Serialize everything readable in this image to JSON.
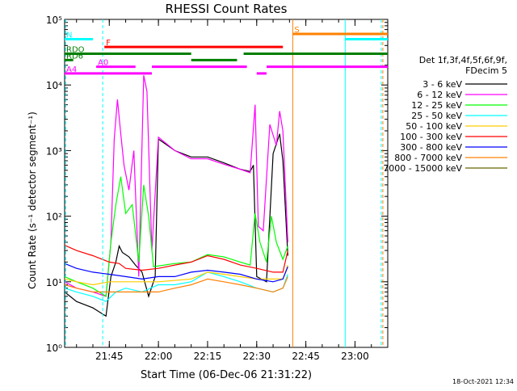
{
  "chart_data": {
    "type": "line",
    "title": "RHESSI Count Rates",
    "xlabel": "Start Time (06-Dec-06 21:31:22)",
    "ylabel": "Count Rate (s⁻¹ detector segment⁻¹)",
    "yscale": "log",
    "xlim": [
      "21:31:22",
      "23:10:00"
    ],
    "ylim": [
      1,
      100000
    ],
    "x_ticks": [
      "21:45",
      "22:00",
      "22:15",
      "22:30",
      "22:45",
      "23:00"
    ],
    "y_ticks": [
      "10⁰",
      "10¹",
      "10²",
      "10³",
      "10⁴",
      "10⁵"
    ],
    "grid": false,
    "legend_position": "right",
    "legend_title": [
      "Det 1f,3f,4f,5f,6f,9f,",
      "FDecim 5"
    ],
    "series": [
      {
        "name": "3 - 6 keV",
        "color": "#000000",
        "points": [
          [
            "21:31:22",
            7
          ],
          [
            "21:35:00",
            5
          ],
          [
            "21:40:00",
            4
          ],
          [
            "21:44:00",
            3
          ],
          [
            "21:45:30",
            12
          ],
          [
            "21:47:00",
            20
          ],
          [
            "21:48:00",
            35
          ],
          [
            "21:49:00",
            28
          ],
          [
            "21:51:00",
            24
          ],
          [
            "21:53:00",
            18
          ],
          [
            "21:55:00",
            14
          ],
          [
            "21:57:00",
            6
          ],
          [
            "21:59:00",
            12
          ],
          [
            "22:00:00",
            1500
          ],
          [
            "22:05:00",
            1000
          ],
          [
            "22:10:00",
            800
          ],
          [
            "22:15:00",
            800
          ],
          [
            "22:20:00",
            650
          ],
          [
            "22:25:00",
            520
          ],
          [
            "22:28:00",
            480
          ],
          [
            "22:29:00",
            600
          ],
          [
            "22:30:00",
            12
          ],
          [
            "22:33:00",
            10
          ],
          [
            "22:35:00",
            900
          ],
          [
            "22:37:00",
            1800
          ],
          [
            "22:38:00",
            700
          ],
          [
            "22:39:30",
            25
          ]
        ]
      },
      {
        "name": "6 - 12 keV",
        "color": "#ff00ff",
        "points": [
          [
            "21:31:22",
            10
          ],
          [
            "21:35:00",
            8
          ],
          [
            "21:40:00",
            7
          ],
          [
            "21:44:00",
            6
          ],
          [
            "21:45:30",
            40
          ],
          [
            "21:46:30",
            1500
          ],
          [
            "21:47:30",
            6000
          ],
          [
            "21:48:30",
            1800
          ],
          [
            "21:49:30",
            600
          ],
          [
            "21:51:00",
            250
          ],
          [
            "21:52:30",
            1000
          ],
          [
            "21:54:00",
            12
          ],
          [
            "21:55:30",
            14000
          ],
          [
            "21:56:30",
            8000
          ],
          [
            "21:58:00",
            30
          ],
          [
            "22:00:00",
            1600
          ],
          [
            "22:05:00",
            1000
          ],
          [
            "22:10:00",
            750
          ],
          [
            "22:15:00",
            750
          ],
          [
            "22:20:00",
            620
          ],
          [
            "22:25:00",
            520
          ],
          [
            "22:28:00",
            460
          ],
          [
            "22:29:30",
            5000
          ],
          [
            "22:30:30",
            70
          ],
          [
            "22:32:00",
            60
          ],
          [
            "22:34:00",
            2500
          ],
          [
            "22:36:00",
            1200
          ],
          [
            "22:37:00",
            4000
          ],
          [
            "22:38:00",
            2000
          ],
          [
            "22:39:30",
            40
          ]
        ]
      },
      {
        "name": "12 - 25 keV",
        "color": "#00ff00",
        "points": [
          [
            "21:31:22",
            12
          ],
          [
            "21:35:00",
            10
          ],
          [
            "21:40:00",
            8
          ],
          [
            "21:44:00",
            6
          ],
          [
            "21:45:30",
            40
          ],
          [
            "21:47:00",
            150
          ],
          [
            "21:48:30",
            400
          ],
          [
            "21:50:00",
            110
          ],
          [
            "21:52:00",
            150
          ],
          [
            "21:54:00",
            20
          ],
          [
            "21:55:30",
            300
          ],
          [
            "21:57:00",
            100
          ],
          [
            "21:58:30",
            17
          ],
          [
            "22:05:00",
            19
          ],
          [
            "22:10:00",
            20
          ],
          [
            "22:15:00",
            26
          ],
          [
            "22:20:00",
            24
          ],
          [
            "22:25:00",
            20
          ],
          [
            "22:28:00",
            18
          ],
          [
            "22:29:30",
            110
          ],
          [
            "22:31:00",
            40
          ],
          [
            "22:33:00",
            20
          ],
          [
            "22:34:30",
            100
          ],
          [
            "22:36:00",
            40
          ],
          [
            "22:38:00",
            22
          ],
          [
            "22:39:30",
            35
          ]
        ]
      },
      {
        "name": "25 - 50 keV",
        "color": "#00ffff",
        "points": [
          [
            "21:31:22",
            8
          ],
          [
            "21:35:00",
            7
          ],
          [
            "21:40:00",
            6
          ],
          [
            "21:44:00",
            5
          ],
          [
            "21:47:00",
            7
          ],
          [
            "21:50:00",
            8
          ],
          [
            "21:55:00",
            7
          ],
          [
            "22:00:00",
            9
          ],
          [
            "22:05:00",
            9
          ],
          [
            "22:10:00",
            10
          ],
          [
            "22:15:00",
            14
          ],
          [
            "22:20:00",
            12
          ],
          [
            "22:25:00",
            10
          ],
          [
            "22:30:00",
            8
          ],
          [
            "22:35:00",
            7
          ],
          [
            "22:38:00",
            8
          ],
          [
            "22:39:30",
            13
          ]
        ]
      },
      {
        "name": "50 - 100 keV",
        "color": "#ffcc00",
        "points": [
          [
            "21:31:22",
            11
          ],
          [
            "21:35:00",
            10
          ],
          [
            "21:40:00",
            9
          ],
          [
            "21:45:00",
            10
          ],
          [
            "21:50:00",
            10
          ],
          [
            "21:55:00",
            10
          ],
          [
            "22:00:00",
            10
          ],
          [
            "22:10:00",
            11
          ],
          [
            "22:15:00",
            14
          ],
          [
            "22:20:00",
            13
          ],
          [
            "22:30:00",
            11
          ],
          [
            "22:38:00",
            11
          ],
          [
            "22:39:30",
            18
          ]
        ]
      },
      {
        "name": "100 - 300 keV",
        "color": "#ff0000",
        "points": [
          [
            "21:31:22",
            36
          ],
          [
            "21:35:00",
            30
          ],
          [
            "21:40:00",
            25
          ],
          [
            "21:45:00",
            20
          ],
          [
            "21:48:00",
            19
          ],
          [
            "21:50:00",
            16
          ],
          [
            "21:55:00",
            15
          ],
          [
            "22:00:00",
            16
          ],
          [
            "22:05:00",
            18
          ],
          [
            "22:10:00",
            20
          ],
          [
            "22:15:00",
            25
          ],
          [
            "22:20:00",
            22
          ],
          [
            "22:25:00",
            18
          ],
          [
            "22:30:00",
            16
          ],
          [
            "22:35:00",
            14
          ],
          [
            "22:38:00",
            14
          ],
          [
            "22:39:30",
            30
          ]
        ]
      },
      {
        "name": "300 - 800 keV",
        "color": "#0000ff",
        "points": [
          [
            "21:31:22",
            19
          ],
          [
            "21:35:00",
            16
          ],
          [
            "21:40:00",
            14
          ],
          [
            "21:45:00",
            13
          ],
          [
            "21:50:00",
            12
          ],
          [
            "21:55:00",
            11
          ],
          [
            "22:00:00",
            12
          ],
          [
            "22:05:00",
            12
          ],
          [
            "22:10:00",
            14
          ],
          [
            "22:15:00",
            15
          ],
          [
            "22:20:00",
            14
          ],
          [
            "22:25:00",
            13
          ],
          [
            "22:30:00",
            11
          ],
          [
            "22:35:00",
            10
          ],
          [
            "22:38:00",
            11
          ],
          [
            "22:39:30",
            17
          ]
        ]
      },
      {
        "name": "800 - 7000 keV",
        "color": "#ff8000",
        "points": [
          [
            "21:31:22",
            9
          ],
          [
            "21:35:00",
            8
          ],
          [
            "21:40:00",
            7
          ],
          [
            "21:45:00",
            7
          ],
          [
            "21:50:00",
            7
          ],
          [
            "21:55:00",
            7
          ],
          [
            "22:00:00",
            7
          ],
          [
            "22:05:00",
            8
          ],
          [
            "22:10:00",
            9
          ],
          [
            "22:15:00",
            11
          ],
          [
            "22:20:00",
            10
          ],
          [
            "22:25:00",
            9
          ],
          [
            "22:30:00",
            8
          ],
          [
            "22:35:00",
            7
          ],
          [
            "22:38:00",
            8
          ],
          [
            "22:39:30",
            12
          ]
        ]
      },
      {
        "name": "7000 - 15000 keV",
        "color": "#666600",
        "points": []
      }
    ],
    "flags": [
      {
        "label": "N",
        "color": "#00ffff",
        "y": 50000,
        "segments": [
          [
            "21:31:22",
            "21:40:00"
          ],
          [
            "22:57:00",
            "23:10:00"
          ]
        ]
      },
      {
        "label": "S",
        "color": "#ff8000",
        "y": 60000,
        "segments": [
          [
            "22:41:00",
            "23:10:00"
          ]
        ]
      },
      {
        "label": "F",
        "color": "#ff0000",
        "y": 38000,
        "segments": [
          [
            "21:43:30",
            "22:38:00"
          ]
        ]
      },
      {
        "label": "RDO",
        "color": "#007f00",
        "y": 30000,
        "segments": [
          [
            "21:31:22",
            "22:10:00"
          ],
          [
            "22:26:00",
            "23:10:00"
          ]
        ]
      },
      {
        "label": "RD6",
        "color": "#007f00",
        "y": 24000,
        "segments": [
          [
            "21:31:22",
            "21:34:00"
          ],
          [
            "22:10:00",
            "22:24:00"
          ]
        ]
      },
      {
        "label": "A0",
        "color": "#ff00ff",
        "y": 19000,
        "segments": [
          [
            "21:41:00",
            "21:53:00"
          ],
          [
            "21:58:00",
            "22:27:00"
          ],
          [
            "22:33:00",
            "23:10:00"
          ]
        ]
      },
      {
        "label": "A4",
        "color": "#ff00ff",
        "y": 15000,
        "segments": [
          [
            "21:31:22",
            "21:58:00"
          ],
          [
            "22:30:00",
            "22:33:00"
          ]
        ]
      }
    ],
    "vertical_markers": [
      {
        "time": "21:31:40",
        "color": "#00ffff",
        "style": "dashed"
      },
      {
        "time": "21:43:00",
        "color": "#00ffff",
        "style": "dashed"
      },
      {
        "time": "22:41:00",
        "color": "#ff8000",
        "style": "solid"
      },
      {
        "time": "22:57:00",
        "color": "#00ffff",
        "style": "solid"
      },
      {
        "time": "23:08:00",
        "color": "#00ffff",
        "style": "dashed"
      },
      {
        "time": "23:08:30",
        "color": "#ff8000",
        "style": "dashed"
      }
    ]
  },
  "footer": {
    "date_stamp": "18-Oct-2021 12:34"
  }
}
